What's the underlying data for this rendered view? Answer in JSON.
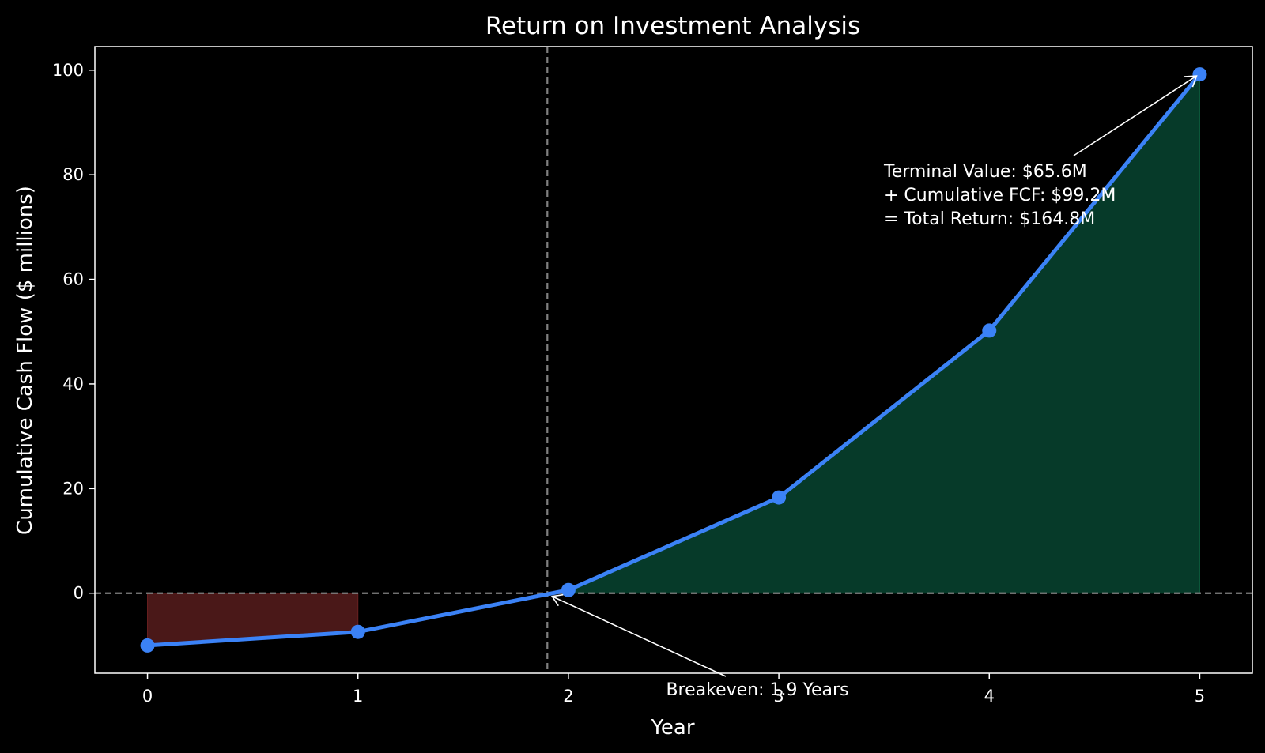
{
  "chart_data": {
    "type": "line",
    "title": "Return on Investment Analysis",
    "xlabel": "Year",
    "ylabel": "Cumulative Cash Flow ($ millions)",
    "x": [
      0,
      1,
      2,
      3,
      4,
      5
    ],
    "xticks": [
      "0",
      "1",
      "2",
      "3",
      "4",
      "5"
    ],
    "xlim": [
      -0.25,
      5.25
    ],
    "ylim": [
      -15.3,
      104.5
    ],
    "yticks": [
      "0",
      "20",
      "40",
      "60",
      "80",
      "100"
    ],
    "series": [
      {
        "values": [
          -10.0,
          -7.4,
          0.6,
          18.3,
          50.2,
          99.2
        ]
      }
    ],
    "breakeven_year": 1.9,
    "annotations": {
      "breakeven": "Breakeven: 1.9 Years",
      "terminal_lines": [
        "Terminal Value: $65.6M",
        "+ Cumulative FCF: $99.2M",
        "= Total Return: $164.8M"
      ]
    },
    "grid": false,
    "legend": "none",
    "colors": {
      "background": "#000000",
      "line": "#3b82f6",
      "positive_fill": "#063a29",
      "negative_fill": "#4a1818",
      "reference": "#808080",
      "text": "#ffffff"
    }
  }
}
